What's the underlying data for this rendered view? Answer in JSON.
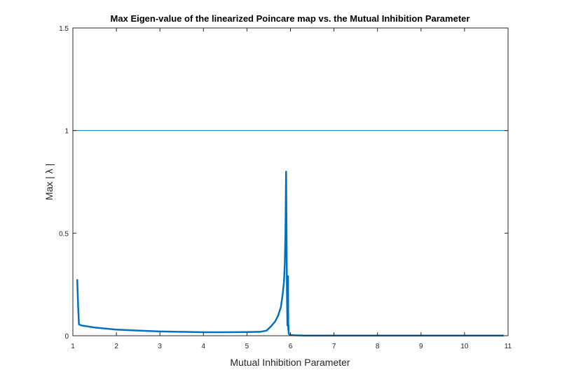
{
  "chart_data": {
    "type": "line",
    "title": "Max Eigen-value of the linearized Poincare map vs. the Mutual Inhibition Parameter",
    "xlabel": "Mutual Inhibition Parameter",
    "ylabel": "Max | λ |",
    "xlim": [
      1,
      11
    ],
    "ylim": [
      0,
      1.5
    ],
    "x_ticks": [
      "1",
      "2",
      "3",
      "4",
      "5",
      "6",
      "7",
      "8",
      "9",
      "10",
      "11"
    ],
    "y_ticks": [
      "0",
      "0.5",
      "1",
      "1.5"
    ],
    "grid": false,
    "legend": "none",
    "series": [
      {
        "color": "#0072BD",
        "x": [
          1.1,
          1.12,
          1.14,
          1.2,
          1.5,
          2.0,
          2.5,
          3.0,
          3.5,
          4.0,
          4.5,
          5.0,
          5.3,
          5.45,
          5.55,
          5.65,
          5.72,
          5.78,
          5.82,
          5.85,
          5.87,
          5.885,
          5.9,
          5.91,
          5.92,
          5.93,
          5.935,
          5.94,
          5.945,
          5.95,
          5.955,
          5.96,
          5.97,
          5.98,
          6.0,
          6.1,
          6.3,
          7.0,
          8.0,
          9.0,
          10.0,
          10.9
        ],
        "y": [
          0.275,
          0.15,
          0.055,
          0.05,
          0.04,
          0.03,
          0.025,
          0.021,
          0.019,
          0.017,
          0.017,
          0.018,
          0.019,
          0.025,
          0.045,
          0.07,
          0.1,
          0.14,
          0.2,
          0.26,
          0.35,
          0.5,
          0.8,
          0.5,
          0.2,
          0.05,
          0.28,
          0.05,
          0.29,
          0.03,
          0.05,
          0.01,
          0.008,
          0.005,
          0.004,
          0.002,
          0.001,
          0.001,
          0.001,
          0.001,
          0.001,
          0.001
        ]
      },
      {
        "color": "#0072BD",
        "x": [
          1,
          11
        ],
        "y": [
          1,
          1
        ]
      }
    ]
  }
}
